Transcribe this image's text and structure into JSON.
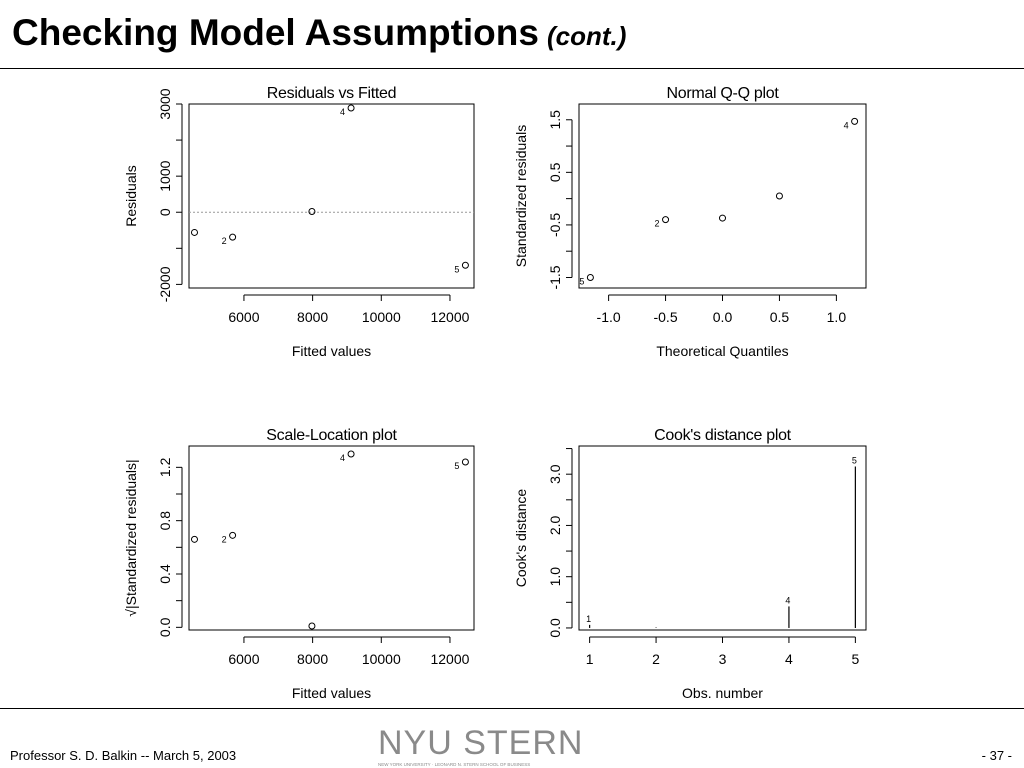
{
  "slide": {
    "title": "Checking Model Assumptions",
    "subtitle": "(cont.)",
    "footer_author": "Professor S. D. Balkin -- March 5, 2003",
    "page_number": "- 37 -",
    "logo_text": "NYU STERN",
    "logo_subtext": "NEW YORK UNIVERSITY · LEONARD N. STERN SCHOOL OF BUSINESS"
  },
  "chart_data": [
    {
      "type": "scatter",
      "title": "Residuals vs Fitted",
      "xlabel": "Fitted values",
      "ylabel": "Residuals",
      "xlim": [
        4400,
        12700
      ],
      "ylim": [
        -2100,
        3000
      ],
      "xticks": [
        6000,
        8000,
        10000,
        12000
      ],
      "xtick_labels": [
        "6000",
        "8000",
        "10000",
        "12000"
      ],
      "yticks": [
        -2000,
        -1000,
        0,
        1000,
        2000,
        3000
      ],
      "ytick_labels": [
        "-2000",
        "",
        "0",
        "1000",
        "",
        "3000"
      ],
      "reference_line": 0,
      "points": [
        {
          "x": 4560,
          "y": -560,
          "label": ""
        },
        {
          "x": 5670,
          "y": -690,
          "label": "2"
        },
        {
          "x": 7980,
          "y": 20,
          "label": ""
        },
        {
          "x": 9120,
          "y": 2890,
          "label": "4"
        },
        {
          "x": 12450,
          "y": -1470,
          "label": "5"
        }
      ]
    },
    {
      "type": "scatter",
      "title": "Normal Q-Q plot",
      "xlabel": "Theoretical Quantiles",
      "ylabel": "Standardized residuals",
      "xlim": [
        -1.26,
        1.26
      ],
      "ylim": [
        -1.7,
        1.8
      ],
      "xticks": [
        -1.0,
        -0.5,
        0.0,
        0.5,
        1.0
      ],
      "xtick_labels": [
        "-1.0",
        "-0.5",
        "0.0",
        "0.5",
        "1.0"
      ],
      "yticks": [
        -1.5,
        -1.0,
        -0.5,
        0.0,
        0.5,
        1.0,
        1.5
      ],
      "ytick_labels": [
        "-1.5",
        "",
        "-0.5",
        "",
        "0.5",
        "",
        "1.5"
      ],
      "points": [
        {
          "x": -1.16,
          "y": -1.5,
          "label": "5"
        },
        {
          "x": -0.5,
          "y": -0.4,
          "label": "2"
        },
        {
          "x": 0.0,
          "y": -0.37,
          "label": ""
        },
        {
          "x": 0.5,
          "y": 0.05,
          "label": ""
        },
        {
          "x": 1.16,
          "y": 1.47,
          "label": "4"
        }
      ]
    },
    {
      "type": "scatter",
      "title": "Scale-Location plot",
      "xlabel": "Fitted values",
      "ylabel": "√|Standardized residuals|",
      "xlim": [
        4400,
        12700
      ],
      "ylim": [
        -0.02,
        1.36
      ],
      "xticks": [
        6000,
        8000,
        10000,
        12000
      ],
      "xtick_labels": [
        "6000",
        "8000",
        "10000",
        "12000"
      ],
      "yticks": [
        0.0,
        0.2,
        0.4,
        0.6,
        0.8,
        1.0,
        1.2
      ],
      "ytick_labels": [
        "0.0",
        "",
        "0.4",
        "",
        "0.8",
        "",
        "1.2"
      ],
      "points": [
        {
          "x": 4560,
          "y": 0.66,
          "label": ""
        },
        {
          "x": 5670,
          "y": 0.69,
          "label": "2"
        },
        {
          "x": 7980,
          "y": 0.01,
          "label": ""
        },
        {
          "x": 9120,
          "y": 1.3,
          "label": "4"
        },
        {
          "x": 12450,
          "y": 1.24,
          "label": "5"
        }
      ]
    },
    {
      "type": "bar",
      "title": "Cook's distance plot",
      "xlabel": "Obs. number",
      "ylabel": "Cook's distance",
      "xlim": [
        0.84,
        5.16
      ],
      "ylim": [
        -0.04,
        3.55
      ],
      "xticks": [
        1,
        2,
        3,
        4,
        5
      ],
      "xtick_labels": [
        "1",
        "2",
        "3",
        "4",
        "5"
      ],
      "yticks": [
        0.0,
        0.5,
        1.0,
        1.5,
        2.0,
        2.5,
        3.0,
        3.5
      ],
      "ytick_labels": [
        "0.0",
        "",
        "1.0",
        "",
        "2.0",
        "",
        "3.0",
        ""
      ],
      "points": [
        {
          "x": 1,
          "y": 0.06,
          "label": "1"
        },
        {
          "x": 2,
          "y": 0.01,
          "label": ""
        },
        {
          "x": 3,
          "y": 0.0,
          "label": ""
        },
        {
          "x": 4,
          "y": 0.42,
          "label": "4"
        },
        {
          "x": 5,
          "y": 3.15,
          "label": "5"
        }
      ]
    }
  ]
}
